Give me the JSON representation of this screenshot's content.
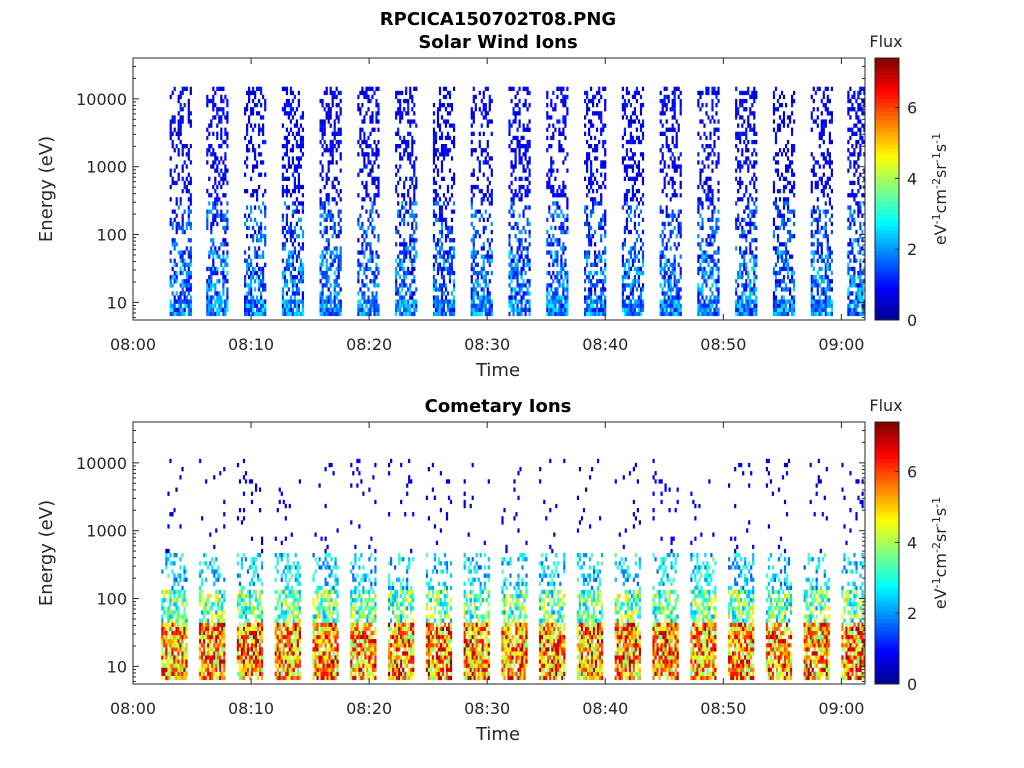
{
  "figure_title": "RPCICA150702T08.PNG",
  "colorbar": {
    "title": "Flux",
    "label": "eV-1cm-2sr-1s-1",
    "ticks": [
      0,
      2,
      4,
      6
    ],
    "range": [
      0,
      7.4
    ],
    "colormap": "jet",
    "colors": [
      "#00008F",
      "#0000FF",
      "#0080FF",
      "#00FFFF",
      "#80FF80",
      "#FFFF00",
      "#FF8000",
      "#FF0000",
      "#800000"
    ]
  },
  "chart_data": [
    {
      "type": "heatmap",
      "title": "Solar Wind Ions",
      "xlabel": "Time",
      "ylabel": "Energy (eV)",
      "x_ticks": [
        "08:00",
        "08:10",
        "08:20",
        "08:30",
        "08:40",
        "08:50",
        "09:00"
      ],
      "y_ticks": [
        "10",
        "100",
        "1000",
        "10000"
      ],
      "y_scale": "log",
      "y_range_eV": [
        5.5,
        40000
      ],
      "x_range_min": [
        0,
        62
      ],
      "scan_pattern": {
        "scan_start_times_min": [
          3.1,
          6.2,
          9.4,
          12.6,
          15.8,
          19.0,
          22.2,
          25.4,
          28.6,
          31.8,
          35.0,
          38.2,
          41.4,
          44.6,
          47.8,
          51.0,
          54.2,
          57.4,
          60.5
        ],
        "scan_duration_min": 1.8
      },
      "bands": [
        {
          "e_min_eV": 6,
          "e_max_eV": 11,
          "flux_range": [
            0.9,
            2.8
          ],
          "density": 0.9
        },
        {
          "e_min_eV": 11,
          "e_max_eV": 60,
          "flux_range": [
            0.6,
            2.6
          ],
          "density": 0.55
        },
        {
          "e_min_eV": 60,
          "e_max_eV": 300,
          "flux_range": [
            0.5,
            2.2
          ],
          "density": 0.35
        },
        {
          "e_min_eV": 300,
          "e_max_eV": 16000,
          "flux_range": [
            0.4,
            1.2
          ],
          "density": 0.35
        }
      ]
    },
    {
      "type": "heatmap",
      "title": "Cometary Ions",
      "xlabel": "Time",
      "ylabel": "Energy (eV)",
      "x_ticks": [
        "08:00",
        "08:10",
        "08:20",
        "08:30",
        "08:40",
        "08:50",
        "09:00"
      ],
      "y_ticks": [
        "10",
        "100",
        "1000",
        "10000"
      ],
      "y_scale": "log",
      "y_range_eV": [
        5.5,
        40000
      ],
      "x_range_min": [
        0,
        62
      ],
      "scan_pattern": {
        "scan_start_times_min": [
          2.4,
          5.6,
          8.8,
          12.0,
          15.2,
          18.4,
          21.6,
          24.8,
          28.0,
          31.2,
          34.4,
          37.6,
          40.8,
          44.0,
          47.2,
          50.4,
          53.6,
          56.8,
          60.0
        ],
        "scan_duration_min": 2.2
      },
      "bands": [
        {
          "e_min_eV": 6,
          "e_max_eV": 45,
          "flux_range": [
            3.5,
            7.2
          ],
          "density": 0.85
        },
        {
          "e_min_eV": 45,
          "e_max_eV": 140,
          "flux_range": [
            2.0,
            5.0
          ],
          "density": 0.6
        },
        {
          "e_min_eV": 140,
          "e_max_eV": 500,
          "flux_range": [
            1.5,
            3.5
          ],
          "density": 0.3
        },
        {
          "e_min_eV": 500,
          "e_max_eV": 12000,
          "flux_range": [
            0.4,
            1.0
          ],
          "density": 0.04
        }
      ]
    }
  ]
}
